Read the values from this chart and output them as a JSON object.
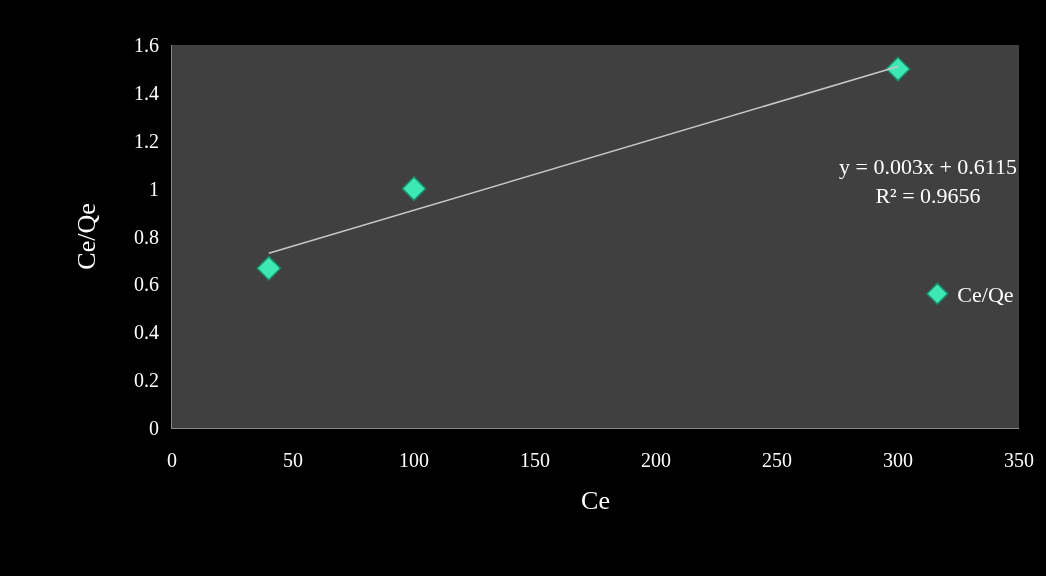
{
  "chart_data": {
    "type": "scatter",
    "xlabel": "Ce",
    "ylabel": "Ce/Qe",
    "xlim": [
      0,
      350
    ],
    "ylim": [
      0,
      1.6
    ],
    "xticks": [
      0,
      50,
      100,
      150,
      200,
      250,
      300,
      350
    ],
    "yticks": [
      0,
      0.2,
      0.4,
      0.6,
      0.8,
      1,
      1.2,
      1.4,
      1.6
    ],
    "grid": false,
    "legend": "right",
    "marker": "diamond",
    "series": [
      {
        "name": "Ce/Qe",
        "color": "#3ee8b4",
        "x": [
          40,
          100,
          300
        ],
        "values": [
          0.667,
          1.0,
          1.5
        ]
      },
      {
        "type": "line",
        "marker": "none",
        "color": "#c8c8c8",
        "x": [
          40,
          300
        ],
        "values": [
          0.73,
          1.51
        ]
      }
    ],
    "annotations": [
      "y = 0.003x + 0.6115\nR² = 0.9656"
    ]
  }
}
